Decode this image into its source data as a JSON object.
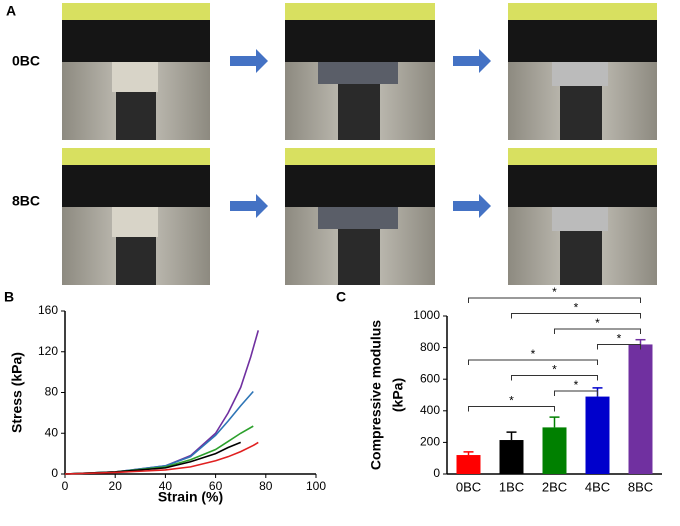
{
  "panel_a": {
    "label": "A",
    "rows": [
      "0BC",
      "8BC"
    ]
  },
  "chart_data": [
    {
      "type": "line",
      "panel_label": "B",
      "xlabel": "Strain (%)",
      "ylabel": "Stress (kPa)",
      "xlim": [
        0,
        100
      ],
      "xticks": [
        0,
        20,
        40,
        60,
        80,
        100
      ],
      "ylim": [
        0,
        160
      ],
      "yticks": [
        0,
        40,
        80,
        120,
        160
      ],
      "series": [
        {
          "color": "#7030a0",
          "x": [
            0,
            20,
            40,
            50,
            60,
            65,
            70,
            74,
            77
          ],
          "values": [
            0,
            2,
            8,
            18,
            40,
            60,
            85,
            115,
            141
          ]
        },
        {
          "color": "#2e75b6",
          "x": [
            0,
            20,
            40,
            50,
            60,
            65,
            70,
            75
          ],
          "values": [
            0,
            2,
            8,
            17,
            38,
            52,
            67,
            81
          ]
        },
        {
          "color": "#2ca02c",
          "x": [
            0,
            20,
            40,
            50,
            60,
            65,
            70,
            75
          ],
          "values": [
            0,
            2,
            7,
            14,
            24,
            32,
            40,
            47
          ]
        },
        {
          "color": "#000000",
          "x": [
            0,
            20,
            40,
            50,
            60,
            65,
            70
          ],
          "values": [
            0,
            2,
            6,
            12,
            20,
            26,
            31
          ]
        },
        {
          "color": "#e02020",
          "x": [
            0,
            20,
            40,
            50,
            60,
            65,
            70,
            75,
            77
          ],
          "values": [
            0,
            1.5,
            4,
            7,
            13,
            17,
            22,
            28,
            31
          ]
        }
      ]
    },
    {
      "type": "bar",
      "panel_label": "C",
      "ylabel": [
        "Compressive modulus",
        "(kPa)"
      ],
      "categories": [
        "0BC",
        "1BC",
        "2BC",
        "4BC",
        "8BC"
      ],
      "values": [
        120,
        215,
        295,
        490,
        820
      ],
      "errors": [
        20,
        50,
        65,
        55,
        30
      ],
      "colors": [
        "#ff0000",
        "#000000",
        "#008000",
        "#0000cc",
        "#7030a0"
      ],
      "ylim": [
        0,
        1000
      ],
      "yticks": [
        0,
        200,
        400,
        600,
        800,
        1000
      ],
      "brackets": [
        {
          "from": 0,
          "to": 4,
          "label": "*"
        },
        {
          "from": 1,
          "to": 4,
          "label": "*"
        },
        {
          "from": 2,
          "to": 4,
          "label": "*"
        },
        {
          "from": 3,
          "to": 4,
          "label": "*"
        },
        {
          "from": 0,
          "to": 3,
          "label": "*"
        },
        {
          "from": 1,
          "to": 3,
          "label": "*"
        },
        {
          "from": 2,
          "to": 3,
          "label": "*"
        },
        {
          "from": 0,
          "to": 2,
          "label": "*"
        }
      ]
    }
  ]
}
